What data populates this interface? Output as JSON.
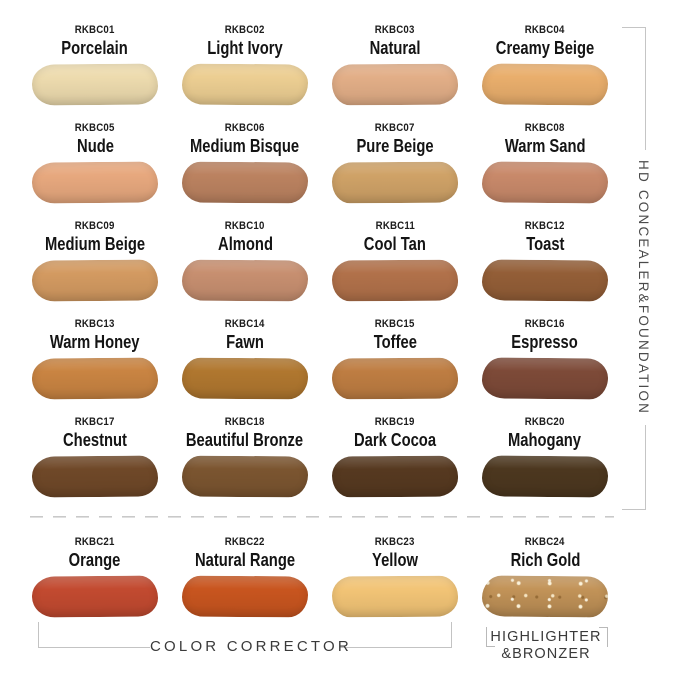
{
  "sections": {
    "right_label": "HD CONCEALER&FOUNDATION",
    "color_corrector": "COLOR CORRECTOR",
    "highlighter_line1": "HIGHLIGHTER",
    "highlighter_line2": "&BRONZER"
  },
  "swatches": [
    {
      "code": "RKBC01",
      "name": "Porcelain",
      "color": "#EDDBAE"
    },
    {
      "code": "RKBC02",
      "name": "Light Ivory",
      "color": "#ECCE92"
    },
    {
      "code": "RKBC03",
      "name": "Natural",
      "color": "#E2AE87"
    },
    {
      "code": "RKBC04",
      "name": "Creamy Beige",
      "color": "#E9AE6C"
    },
    {
      "code": "RKBC05",
      "name": "Nude",
      "color": "#E7A87E"
    },
    {
      "code": "RKBC06",
      "name": "Medium Bisque",
      "color": "#BB8260"
    },
    {
      "code": "RKBC07",
      "name": "Pure Beige",
      "color": "#CFA267"
    },
    {
      "code": "RKBC08",
      "name": "Warm Sand",
      "color": "#C8896A"
    },
    {
      "code": "RKBC09",
      "name": "Medium Beige",
      "color": "#D39A61"
    },
    {
      "code": "RKBC10",
      "name": "Almond",
      "color": "#C78F70"
    },
    {
      "code": "RKBC11",
      "name": "Cool Tan",
      "color": "#B1714A"
    },
    {
      "code": "RKBC12",
      "name": "Toast",
      "color": "#935E37"
    },
    {
      "code": "RKBC13",
      "name": "Warm Honey",
      "color": "#C98442"
    },
    {
      "code": "RKBC14",
      "name": "Fawn",
      "color": "#B0772F"
    },
    {
      "code": "RKBC15",
      "name": "Toffee",
      "color": "#BE7D42"
    },
    {
      "code": "RKBC16",
      "name": "Espresso",
      "color": "#7D4A38"
    },
    {
      "code": "RKBC17",
      "name": "Chestnut",
      "color": "#6F4828"
    },
    {
      "code": "RKBC18",
      "name": "Beautiful Bronze",
      "color": "#7B5530"
    },
    {
      "code": "RKBC19",
      "name": "Dark Cocoa",
      "color": "#563920"
    },
    {
      "code": "RKBC20",
      "name": "Mahogany",
      "color": "#4C371F"
    },
    {
      "code": "RKBC21",
      "name": "Orange",
      "color": "#C24A30"
    },
    {
      "code": "RKBC22",
      "name": "Natural Range",
      "color": "#C8551F"
    },
    {
      "code": "RKBC23",
      "name": "Yellow",
      "color": "#F2C476"
    },
    {
      "code": "RKBC24",
      "name": "Rich Gold",
      "color": "#C29358",
      "sparkle": true
    }
  ]
}
